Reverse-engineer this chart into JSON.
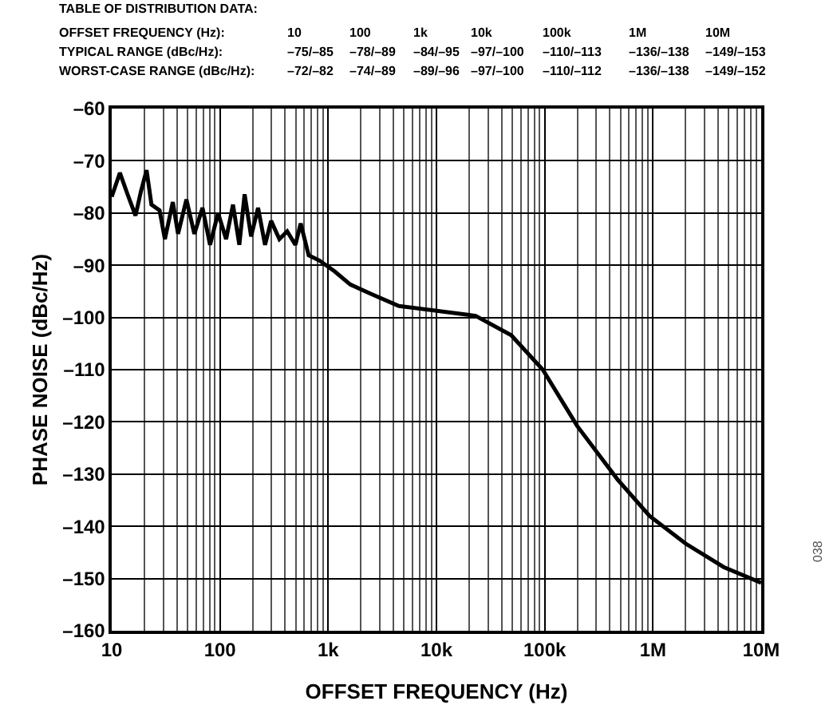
{
  "chart_data": {
    "type": "line",
    "xlabel": "OFFSET FREQUENCY (Hz)",
    "ylabel": "PHASE NOISE (dBc/Hz)",
    "x": [
      10,
      11.9,
      14,
      16.6,
      18.6,
      21,
      23.3,
      27.7,
      31,
      36.7,
      41,
      49,
      58,
      69,
      81,
      96,
      114,
      132,
      151,
      169,
      194,
      225,
      261,
      297,
      354,
      418,
      498,
      557,
      660,
      830,
      1150,
      1600,
      2500,
      4500,
      19500,
      23000,
      49000,
      96000,
      200000,
      470000,
      930000,
      2000000,
      4500000,
      10000000
    ],
    "series": [
      {
        "color": "#000000",
        "values": [
          -76.9,
          -72.3,
          -76.4,
          -80.5,
          -75.9,
          -71.8,
          -78.4,
          -79.5,
          -85,
          -77.9,
          -84,
          -77.4,
          -84,
          -79,
          -86.1,
          -80,
          -85,
          -78.4,
          -86.1,
          -76.4,
          -84.5,
          -79,
          -86.1,
          -81.5,
          -85,
          -83.5,
          -86.1,
          -82,
          -88.1,
          -89.1,
          -91.2,
          -93.7,
          -95.5,
          -97.8,
          -99.5,
          -99.7,
          -103.4,
          -110,
          -120.8,
          -131,
          -138,
          -143.3,
          -147.8,
          -150.8
        ]
      }
    ],
    "log": "x",
    "xlim": [
      10,
      10000000
    ],
    "xticks": [
      10,
      100,
      {
        "value": 1000,
        "label": "1k"
      },
      {
        "value": 10000,
        "label": "10k"
      },
      {
        "value": 100000,
        "label": "100k"
      },
      {
        "value": 1000000,
        "label": "1M"
      },
      {
        "value": 10000000,
        "label": "10M"
      }
    ],
    "ylim": [
      -160,
      -60
    ],
    "yticks": [
      {
        "value": -160,
        "label": "–160"
      },
      {
        "value": -150,
        "label": "–150"
      },
      {
        "value": -140,
        "label": "–140"
      },
      {
        "value": -130,
        "label": "–130"
      },
      {
        "value": -120,
        "label": "–120"
      },
      {
        "value": -110,
        "label": "–110"
      },
      {
        "value": -100,
        "label": "–100"
      },
      {
        "value": -90,
        "label": "–90"
      },
      {
        "value": -80,
        "label": "–80"
      },
      {
        "value": -70,
        "label": "–70"
      },
      {
        "value": -60,
        "label": "–60"
      }
    ],
    "grid": true,
    "line_style": "solid",
    "marker": "none",
    "annotations": [
      "TABLE OF DISTRIBUTION DATA:",
      "OFFSET FREQUENCY (Hz):",
      "10",
      "100",
      "1k",
      "10k",
      "100k",
      "1M",
      "10M",
      "TYPICAL RANGE (dBc/Hz):",
      "–75/–85",
      "–78/–89",
      "–84/–95",
      "–97/–100",
      "–110/–113",
      "–136/–138",
      "–149/–153",
      "WORST-CASE RANGE (dBc/Hz):",
      "–72/–82",
      "–74/–89",
      "–89/–96",
      "–97/–100",
      "–110/–112",
      "–136/–138",
      "–149/–152",
      "038"
    ]
  }
}
